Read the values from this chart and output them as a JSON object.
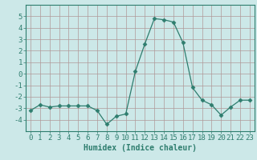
{
  "x": [
    0,
    1,
    2,
    3,
    4,
    5,
    6,
    7,
    8,
    9,
    10,
    11,
    12,
    13,
    14,
    15,
    16,
    17,
    18,
    19,
    20,
    21,
    22,
    23
  ],
  "y": [
    -3.2,
    -2.7,
    -2.9,
    -2.8,
    -2.8,
    -2.8,
    -2.8,
    -3.2,
    -4.4,
    -3.7,
    -3.5,
    0.2,
    2.6,
    4.8,
    4.7,
    4.5,
    2.7,
    -1.2,
    -2.3,
    -2.7,
    -3.6,
    -2.9,
    -2.3,
    -2.3
  ],
  "xlabel": "Humidex (Indice chaleur)",
  "ylim": [
    -5,
    6
  ],
  "xlim": [
    -0.5,
    23.5
  ],
  "yticks": [
    -4,
    -3,
    -2,
    -1,
    0,
    1,
    2,
    3,
    4,
    5
  ],
  "xticks": [
    0,
    1,
    2,
    3,
    4,
    5,
    6,
    7,
    8,
    9,
    10,
    11,
    12,
    13,
    14,
    15,
    16,
    17,
    18,
    19,
    20,
    21,
    22,
    23
  ],
  "line_color": "#2e7d6e",
  "marker": "D",
  "marker_size": 2.5,
  "bg_color": "#cce8e8",
  "grid_color": "#b09898",
  "xlabel_fontsize": 7,
  "tick_fontsize": 6.5,
  "linewidth": 0.9
}
